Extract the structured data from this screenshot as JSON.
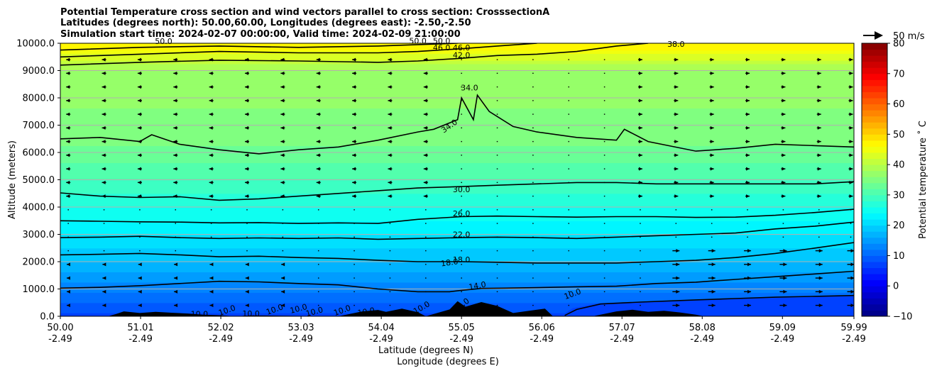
{
  "chart_data": {
    "type": "filled-contour",
    "title_lines": [
      "Potential Temperature cross section and wind vectors parallel to cross section: CrosssectionA",
      "Latitudes (degrees north): 50.00,60.00, Longitudes (degrees east): -2.50,-2.50",
      "Simulation start time: 2024-02-07 00:00:00, Valid time: 2024-02-09 21:00:00"
    ],
    "ylabel": "Altitude (meters)",
    "xlabel_lines": [
      "Latitude (degrees N)",
      "Longitude (degrees E)"
    ],
    "ylim": [
      0,
      10000
    ],
    "xlim": [
      50.0,
      59.99
    ],
    "y_ticks": [
      {
        "value": 0,
        "label": "0.0"
      },
      {
        "value": 1000,
        "label": "1000.0"
      },
      {
        "value": 2000,
        "label": "2000.0"
      },
      {
        "value": 3000,
        "label": "3000.0"
      },
      {
        "value": 4000,
        "label": "4000.0"
      },
      {
        "value": 5000,
        "label": "5000.0"
      },
      {
        "value": 6000,
        "label": "6000.0"
      },
      {
        "value": 7000,
        "label": "7000.0"
      },
      {
        "value": 8000,
        "label": "8000.0"
      },
      {
        "value": 9000,
        "label": "9000.0"
      },
      {
        "value": 10000,
        "label": "10000.0"
      }
    ],
    "x_ticks": [
      {
        "value": 50.0,
        "lat": "50.00",
        "lon": "-2.49"
      },
      {
        "value": 51.01,
        "lat": "51.01",
        "lon": "-2.49"
      },
      {
        "value": 52.02,
        "lat": "52.02",
        "lon": "-2.49"
      },
      {
        "value": 53.03,
        "lat": "53.03",
        "lon": "-2.49"
      },
      {
        "value": 54.04,
        "lat": "54.04",
        "lon": "-2.49"
      },
      {
        "value": 55.05,
        "lat": "55.05",
        "lon": "-2.49"
      },
      {
        "value": 56.06,
        "lat": "56.06",
        "lon": "-2.49"
      },
      {
        "value": 57.07,
        "lat": "57.07",
        "lon": "-2.49"
      },
      {
        "value": 58.08,
        "lat": "58.08",
        "lon": "-2.49"
      },
      {
        "value": 59.09,
        "lat": "59.09",
        "lon": "-2.49"
      },
      {
        "value": 59.99,
        "lat": "59.99",
        "lon": "-2.49"
      }
    ],
    "grid": "horizontal",
    "colorbar": {
      "label": "Potential temperature ˚ C",
      "min": -10,
      "max": 80,
      "ticks": [
        -10,
        0,
        10,
        20,
        30,
        40,
        50,
        60,
        70,
        80
      ],
      "colormap": "jet"
    },
    "quiver_key": {
      "label": "50 m/s",
      "speed": 50
    },
    "theta_profile": [
      {
        "alt": 0,
        "theta": 7
      },
      {
        "alt": 1000,
        "theta": 13
      },
      {
        "alt": 2000,
        "theta": 18
      },
      {
        "alt": 3000,
        "theta": 22
      },
      {
        "alt": 4000,
        "theta": 26
      },
      {
        "alt": 5000,
        "theta": 30
      },
      {
        "alt": 6300,
        "theta": 34
      },
      {
        "alt": 9000,
        "theta": 38
      },
      {
        "alt": 9400,
        "theta": 42
      },
      {
        "alt": 10000,
        "theta": 48
      }
    ],
    "contours": [
      {
        "level": 10.0,
        "label": "10.0",
        "points": [
          [
            56.35,
            30
          ],
          [
            56.5,
            250
          ],
          [
            56.8,
            450
          ],
          [
            57.3,
            520
          ],
          [
            58.0,
            600
          ],
          [
            58.5,
            650
          ],
          [
            59.0,
            700
          ],
          [
            59.5,
            730
          ],
          [
            59.99,
            760
          ]
        ]
      },
      {
        "level": 14.0,
        "label": "14.0",
        "points": [
          [
            50.0,
            1030
          ],
          [
            50.5,
            1060
          ],
          [
            51.0,
            1120
          ],
          [
            51.5,
            1200
          ],
          [
            52.0,
            1280
          ],
          [
            52.5,
            1260
          ],
          [
            53.0,
            1200
          ],
          [
            53.5,
            1150
          ],
          [
            54.0,
            1000
          ],
          [
            54.5,
            900
          ],
          [
            54.9,
            900
          ],
          [
            55.05,
            950
          ],
          [
            55.3,
            1020
          ],
          [
            55.6,
            1030
          ],
          [
            56.0,
            1050
          ],
          [
            56.5,
            1080
          ],
          [
            57.0,
            1100
          ],
          [
            57.5,
            1200
          ],
          [
            58.0,
            1250
          ],
          [
            58.5,
            1350
          ],
          [
            59.0,
            1450
          ],
          [
            59.5,
            1550
          ],
          [
            59.99,
            1650
          ]
        ]
      },
      {
        "level": 18.0,
        "label": "18.0",
        "points": [
          [
            50.0,
            2250
          ],
          [
            50.5,
            2270
          ],
          [
            51.0,
            2300
          ],
          [
            51.5,
            2250
          ],
          [
            52.0,
            2180
          ],
          [
            52.5,
            2200
          ],
          [
            53.0,
            2150
          ],
          [
            53.5,
            2120
          ],
          [
            54.0,
            2050
          ],
          [
            54.5,
            2000
          ],
          [
            55.05,
            2000
          ],
          [
            55.5,
            1980
          ],
          [
            56.0,
            1950
          ],
          [
            56.5,
            1950
          ],
          [
            57.0,
            1950
          ],
          [
            57.5,
            2000
          ],
          [
            58.0,
            2050
          ],
          [
            58.5,
            2150
          ],
          [
            59.0,
            2300
          ],
          [
            59.5,
            2500
          ],
          [
            59.99,
            2700
          ]
        ]
      },
      {
        "level": 22.0,
        "label": "22.0",
        "points": [
          [
            50.0,
            2880
          ],
          [
            50.5,
            2900
          ],
          [
            51.0,
            2930
          ],
          [
            51.5,
            2880
          ],
          [
            52.0,
            2850
          ],
          [
            52.5,
            2870
          ],
          [
            53.0,
            2850
          ],
          [
            53.5,
            2870
          ],
          [
            54.0,
            2820
          ],
          [
            54.5,
            2850
          ],
          [
            55.05,
            2880
          ],
          [
            55.5,
            2900
          ],
          [
            56.0,
            2880
          ],
          [
            56.5,
            2850
          ],
          [
            57.0,
            2900
          ],
          [
            57.5,
            2950
          ],
          [
            58.0,
            3000
          ],
          [
            58.5,
            3050
          ],
          [
            59.0,
            3200
          ],
          [
            59.5,
            3300
          ],
          [
            59.99,
            3450
          ]
        ]
      },
      {
        "level": 26.0,
        "label": "26.0",
        "points": [
          [
            50.0,
            3500
          ],
          [
            50.5,
            3480
          ],
          [
            51.0,
            3460
          ],
          [
            51.5,
            3450
          ],
          [
            52.0,
            3420
          ],
          [
            52.5,
            3430
          ],
          [
            53.0,
            3400
          ],
          [
            53.5,
            3420
          ],
          [
            54.0,
            3400
          ],
          [
            54.5,
            3550
          ],
          [
            55.05,
            3650
          ],
          [
            55.5,
            3670
          ],
          [
            56.0,
            3650
          ],
          [
            56.5,
            3630
          ],
          [
            57.0,
            3650
          ],
          [
            57.5,
            3650
          ],
          [
            58.0,
            3620
          ],
          [
            58.5,
            3630
          ],
          [
            59.0,
            3700
          ],
          [
            59.5,
            3800
          ],
          [
            59.99,
            3920
          ]
        ]
      },
      {
        "level": 30.0,
        "label": "30.0",
        "points": [
          [
            50.0,
            4520
          ],
          [
            50.5,
            4400
          ],
          [
            51.0,
            4350
          ],
          [
            51.5,
            4380
          ],
          [
            52.0,
            4250
          ],
          [
            52.5,
            4300
          ],
          [
            53.0,
            4400
          ],
          [
            53.5,
            4500
          ],
          [
            54.0,
            4600
          ],
          [
            54.5,
            4700
          ],
          [
            55.05,
            4750
          ],
          [
            55.5,
            4800
          ],
          [
            56.0,
            4850
          ],
          [
            56.5,
            4900
          ],
          [
            57.0,
            4900
          ],
          [
            57.5,
            4850
          ],
          [
            58.0,
            4850
          ],
          [
            58.5,
            4850
          ],
          [
            59.0,
            4850
          ],
          [
            59.5,
            4850
          ],
          [
            59.99,
            4930
          ]
        ]
      },
      {
        "level": 34.0,
        "label": "34.0",
        "points": [
          [
            50.0,
            6500
          ],
          [
            50.5,
            6550
          ],
          [
            51.0,
            6400
          ],
          [
            51.15,
            6650
          ],
          [
            51.5,
            6300
          ],
          [
            52.0,
            6100
          ],
          [
            52.5,
            5950
          ],
          [
            53.0,
            6100
          ],
          [
            53.5,
            6200
          ],
          [
            54.0,
            6450
          ],
          [
            54.5,
            6750
          ],
          [
            54.7,
            6850
          ],
          [
            55.0,
            7200
          ],
          [
            55.05,
            8000
          ],
          [
            55.2,
            7200
          ],
          [
            55.25,
            8100
          ],
          [
            55.4,
            7500
          ],
          [
            55.7,
            6950
          ],
          [
            56.0,
            6750
          ],
          [
            56.5,
            6550
          ],
          [
            57.0,
            6450
          ],
          [
            57.1,
            6850
          ],
          [
            57.4,
            6400
          ],
          [
            58.0,
            6050
          ],
          [
            58.5,
            6150
          ],
          [
            59.0,
            6300
          ],
          [
            59.5,
            6250
          ],
          [
            59.99,
            6200
          ]
        ]
      },
      {
        "level": 42.0,
        "label": "42.0",
        "points": [
          [
            50.0,
            9200
          ],
          [
            51.0,
            9300
          ],
          [
            52.0,
            9380
          ],
          [
            53.0,
            9350
          ],
          [
            54.0,
            9300
          ],
          [
            54.5,
            9350
          ],
          [
            55.05,
            9450
          ],
          [
            55.5,
            9550
          ],
          [
            56.0,
            9600
          ],
          [
            56.5,
            9700
          ],
          [
            57.0,
            9900
          ],
          [
            57.4,
            10000
          ]
        ]
      },
      {
        "level": 46.0,
        "label": "46.0",
        "points": [
          [
            50.0,
            9500
          ],
          [
            51.0,
            9600
          ],
          [
            52.0,
            9700
          ],
          [
            53.0,
            9650
          ],
          [
            54.0,
            9650
          ],
          [
            54.5,
            9700
          ],
          [
            55.05,
            9800
          ],
          [
            55.5,
            9900
          ],
          [
            56.0,
            10000
          ]
        ]
      },
      {
        "level": 50.0,
        "label": "50.0",
        "points": [
          [
            50.0,
            9750
          ],
          [
            51.0,
            9850
          ],
          [
            52.0,
            9900
          ],
          [
            53.0,
            9850
          ],
          [
            54.0,
            9900
          ],
          [
            54.5,
            9950
          ],
          [
            55.0,
            10000
          ]
        ]
      }
    ],
    "contour_labels": [
      {
        "text": "10.0",
        "x": 56.45,
        "y": 800,
        "angle": -20
      },
      {
        "text": "14.0",
        "x": 55.25,
        "y": 1100,
        "angle": -10
      },
      {
        "text": "18.0",
        "x": 54.9,
        "y": 1950,
        "angle": -8
      },
      {
        "text": "18.0",
        "x": 55.05,
        "y": 2050,
        "angle": 0
      },
      {
        "text": "22.0",
        "x": 55.05,
        "y": 2980,
        "angle": 0
      },
      {
        "text": "26.0",
        "x": 55.05,
        "y": 3740,
        "angle": 0
      },
      {
        "text": "30.0",
        "x": 55.05,
        "y": 4620,
        "angle": 0
      },
      {
        "text": "34.0",
        "x": 54.9,
        "y": 6950,
        "angle": -35
      },
      {
        "text": "34.0",
        "x": 55.15,
        "y": 8350,
        "angle": 0
      },
      {
        "text": "38.0",
        "x": 57.75,
        "y": 9950,
        "angle": 0
      },
      {
        "text": "42.0",
        "x": 55.05,
        "y": 9550,
        "angle": 0
      },
      {
        "text": "46.0",
        "x": 54.8,
        "y": 9820,
        "angle": 0
      },
      {
        "text": "46.0",
        "x": 55.05,
        "y": 9820,
        "angle": 0
      },
      {
        "text": "50.0",
        "x": 51.3,
        "y": 10050,
        "angle": 0
      },
      {
        "text": "50.0",
        "x": 54.5,
        "y": 10060,
        "angle": 0
      },
      {
        "text": "50.0",
        "x": 54.8,
        "y": 10060,
        "angle": 0
      },
      {
        "text": "10.0",
        "x": 51.75,
        "y": 60,
        "angle": 0
      },
      {
        "text": "10.0",
        "x": 52.1,
        "y": 200,
        "angle": -20
      },
      {
        "text": "10.0",
        "x": 52.4,
        "y": 80,
        "angle": 0
      },
      {
        "text": "10.0",
        "x": 52.7,
        "y": 230,
        "angle": -20
      },
      {
        "text": "10.0",
        "x": 53.0,
        "y": 260,
        "angle": -15
      },
      {
        "text": "10.0",
        "x": 53.2,
        "y": 150,
        "angle": -15
      },
      {
        "text": "10.0",
        "x": 53.55,
        "y": 200,
        "angle": -20
      },
      {
        "text": "10.0",
        "x": 53.85,
        "y": 150,
        "angle": -10
      },
      {
        "text": "10.0",
        "x": 54.55,
        "y": 300,
        "angle": -30
      },
      {
        "text": "10.0",
        "x": 55.05,
        "y": 400,
        "angle": -35
      }
    ],
    "terrain": [
      [
        50.0,
        0
      ],
      [
        50.6,
        0
      ],
      [
        50.7,
        80
      ],
      [
        50.8,
        180
      ],
      [
        51.0,
        120
      ],
      [
        51.2,
        160
      ],
      [
        51.4,
        130
      ],
      [
        51.6,
        100
      ],
      [
        51.8,
        60
      ],
      [
        52.0,
        40
      ],
      [
        52.2,
        0
      ],
      [
        52.4,
        30
      ],
      [
        52.8,
        20
      ],
      [
        53.2,
        10
      ],
      [
        53.5,
        0
      ],
      [
        53.6,
        60
      ],
      [
        53.8,
        180
      ],
      [
        54.0,
        230
      ],
      [
        54.1,
        160
      ],
      [
        54.3,
        280
      ],
      [
        54.5,
        150
      ],
      [
        54.6,
        0
      ],
      [
        54.9,
        250
      ],
      [
        55.0,
        550
      ],
      [
        55.1,
        350
      ],
      [
        55.3,
        520
      ],
      [
        55.5,
        380
      ],
      [
        55.7,
        120
      ],
      [
        55.9,
        200
      ],
      [
        56.1,
        280
      ],
      [
        56.2,
        0
      ],
      [
        56.7,
        0
      ],
      [
        56.8,
        60
      ],
      [
        57.0,
        180
      ],
      [
        57.2,
        240
      ],
      [
        57.4,
        160
      ],
      [
        57.6,
        200
      ],
      [
        57.8,
        140
      ],
      [
        58.0,
        60
      ],
      [
        58.1,
        0
      ],
      [
        59.99,
        0
      ]
    ],
    "wind_rows": [
      400,
      900,
      1400,
      1900,
      2400,
      2900,
      3400,
      3900,
      4400,
      4900,
      5400,
      5900,
      6400,
      6900,
      7400,
      7900,
      8400,
      8900,
      9400
    ],
    "wind_columns": [
      50.1,
      50.55,
      51.0,
      51.45,
      51.9,
      52.35,
      52.8,
      53.25,
      53.7,
      54.15,
      54.6,
      55.05,
      55.5,
      55.95,
      56.4,
      56.85,
      57.3,
      57.75,
      58.2,
      58.65,
      59.1,
      59.55,
      59.95
    ]
  }
}
